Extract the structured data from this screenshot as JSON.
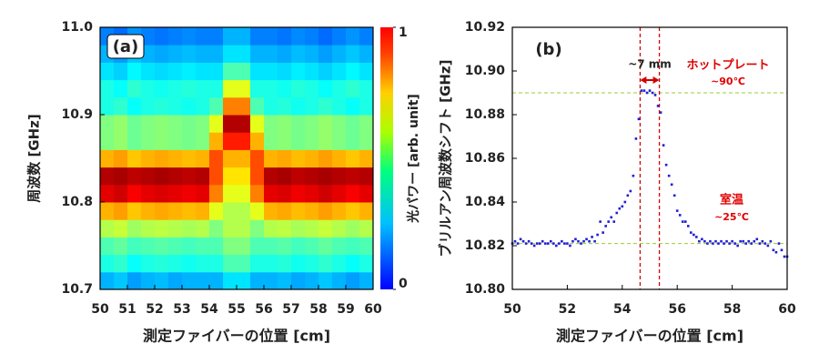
{
  "chart_data": [
    {
      "type": "heatmap",
      "panel_label": "(a)",
      "x_label": "測定ファイバーの位置 [cm]",
      "y_label": "周波数 [GHz]",
      "colorbar_label": "光パワー [arb. unit]",
      "xlim": [
        50,
        60
      ],
      "xticks": [
        50,
        51,
        52,
        53,
        54,
        55,
        56,
        57,
        58,
        59,
        60
      ],
      "ylim": [
        10.7,
        11.0
      ],
      "yticks": [
        10.7,
        10.8,
        10.9,
        {
          "value": 11.0,
          "label": "11.0"
        }
      ],
      "zlim": [
        0,
        1
      ],
      "zticks": [
        0,
        1
      ],
      "colormap": "jet",
      "x": [
        50.25,
        50.75,
        51.25,
        51.75,
        52.25,
        52.75,
        53.25,
        53.75,
        54.25,
        54.75,
        55.25,
        55.75,
        56.25,
        56.75,
        57.25,
        57.75,
        58.25,
        58.75,
        59.25,
        59.75
      ],
      "y": [
        10.71,
        10.73,
        10.75,
        10.77,
        10.79,
        10.81,
        10.83,
        10.85,
        10.87,
        10.89,
        10.91,
        10.93,
        10.95,
        10.97,
        10.99
      ],
      "z": [
        [
          0.3,
          0.32,
          0.28,
          0.3,
          0.31,
          0.29,
          0.3,
          0.3,
          0.3,
          0.35,
          0.35,
          0.3,
          0.3,
          0.31,
          0.29,
          0.3,
          0.32,
          0.3,
          0.28,
          0.3
        ],
        [
          0.4,
          0.42,
          0.38,
          0.4,
          0.41,
          0.4,
          0.39,
          0.4,
          0.4,
          0.45,
          0.45,
          0.4,
          0.4,
          0.41,
          0.39,
          0.4,
          0.42,
          0.4,
          0.38,
          0.4
        ],
        [
          0.45,
          0.47,
          0.44,
          0.45,
          0.46,
          0.45,
          0.44,
          0.45,
          0.45,
          0.5,
          0.5,
          0.45,
          0.45,
          0.46,
          0.44,
          0.45,
          0.47,
          0.45,
          0.44,
          0.45
        ],
        [
          0.55,
          0.57,
          0.53,
          0.55,
          0.56,
          0.55,
          0.54,
          0.55,
          0.5,
          0.55,
          0.55,
          0.5,
          0.55,
          0.56,
          0.54,
          0.55,
          0.57,
          0.55,
          0.53,
          0.55
        ],
        [
          0.7,
          0.72,
          0.68,
          0.7,
          0.71,
          0.7,
          0.69,
          0.7,
          0.6,
          0.55,
          0.55,
          0.6,
          0.7,
          0.71,
          0.69,
          0.7,
          0.72,
          0.7,
          0.68,
          0.7
        ],
        [
          0.9,
          0.92,
          0.88,
          0.9,
          0.91,
          0.9,
          0.89,
          0.9,
          0.75,
          0.6,
          0.6,
          0.75,
          0.9,
          0.91,
          0.89,
          0.9,
          0.92,
          0.9,
          0.88,
          0.9
        ],
        [
          0.95,
          0.96,
          0.94,
          0.95,
          0.96,
          0.95,
          0.94,
          0.95,
          0.8,
          0.65,
          0.65,
          0.8,
          0.95,
          0.96,
          0.94,
          0.95,
          0.96,
          0.95,
          0.94,
          0.95
        ],
        [
          0.7,
          0.72,
          0.68,
          0.7,
          0.71,
          0.7,
          0.69,
          0.7,
          0.8,
          0.7,
          0.7,
          0.8,
          0.7,
          0.71,
          0.69,
          0.7,
          0.72,
          0.7,
          0.68,
          0.7
        ],
        [
          0.5,
          0.52,
          0.48,
          0.5,
          0.51,
          0.5,
          0.49,
          0.5,
          0.7,
          0.85,
          0.85,
          0.7,
          0.5,
          0.51,
          0.49,
          0.5,
          0.52,
          0.5,
          0.48,
          0.5
        ],
        [
          0.5,
          0.52,
          0.48,
          0.5,
          0.51,
          0.5,
          0.49,
          0.5,
          0.6,
          0.95,
          0.95,
          0.6,
          0.5,
          0.51,
          0.49,
          0.5,
          0.52,
          0.5,
          0.48,
          0.5
        ],
        [
          0.4,
          0.42,
          0.38,
          0.4,
          0.41,
          0.4,
          0.39,
          0.4,
          0.45,
          0.75,
          0.75,
          0.45,
          0.4,
          0.41,
          0.39,
          0.4,
          0.42,
          0.4,
          0.38,
          0.4
        ],
        [
          0.4,
          0.38,
          0.42,
          0.4,
          0.39,
          0.4,
          0.41,
          0.4,
          0.4,
          0.6,
          0.6,
          0.4,
          0.4,
          0.39,
          0.41,
          0.4,
          0.38,
          0.4,
          0.42,
          0.4
        ],
        [
          0.35,
          0.33,
          0.37,
          0.35,
          0.34,
          0.35,
          0.36,
          0.35,
          0.35,
          0.45,
          0.45,
          0.35,
          0.35,
          0.34,
          0.36,
          0.35,
          0.33,
          0.35,
          0.37,
          0.35
        ],
        [
          0.3,
          0.28,
          0.32,
          0.3,
          0.29,
          0.3,
          0.31,
          0.3,
          0.3,
          0.35,
          0.35,
          0.3,
          0.3,
          0.29,
          0.31,
          0.3,
          0.28,
          0.3,
          0.32,
          0.3
        ],
        [
          0.25,
          0.23,
          0.27,
          0.25,
          0.24,
          0.25,
          0.26,
          0.25,
          0.25,
          0.3,
          0.3,
          0.25,
          0.25,
          0.24,
          0.26,
          0.25,
          0.23,
          0.25,
          0.27,
          0.25
        ]
      ]
    },
    {
      "type": "scatter",
      "panel_label": "(b)",
      "x_label": "測定ファイバーの位置 [cm]",
      "y_label": "ブリルアン周波数シフト [GHz]",
      "xlim": [
        50,
        60
      ],
      "xticks": [
        50,
        52,
        54,
        56,
        58,
        60
      ],
      "ylim": [
        10.8,
        10.92
      ],
      "yticks": [
        {
          "value": 10.8,
          "label": "10.80"
        },
        10.82,
        10.84,
        10.86,
        10.88,
        {
          "value": 10.9,
          "label": "10.90"
        },
        10.92
      ],
      "color": "#1f1fd6",
      "hlines": [
        {
          "value": 10.89,
          "color": "#9acd32"
        },
        {
          "value": 10.821,
          "color": "#9acd32"
        }
      ],
      "vlines": [
        {
          "value": 54.65,
          "color": "#d40000"
        },
        {
          "value": 55.35,
          "color": "#d40000"
        }
      ],
      "span_label": "~7 mm",
      "annotations": [
        {
          "text": "ホットプレート",
          "color": "#e00000"
        },
        {
          "text": "~90℃",
          "color": "#e00000"
        },
        {
          "text": "室温",
          "color": "#e00000"
        },
        {
          "text": "~25℃",
          "color": "#e00000"
        }
      ],
      "x": [
        50.0,
        50.1,
        50.2,
        50.3,
        50.4,
        50.5,
        50.6,
        50.7,
        50.8,
        50.9,
        51.0,
        51.1,
        51.2,
        51.3,
        51.4,
        51.5,
        51.6,
        51.7,
        51.8,
        51.9,
        52.0,
        52.1,
        52.2,
        52.3,
        52.4,
        52.5,
        52.6,
        52.7,
        52.8,
        52.9,
        53.0,
        53.1,
        53.2,
        53.3,
        53.4,
        53.5,
        53.6,
        53.7,
        53.8,
        53.9,
        54.0,
        54.1,
        54.2,
        54.3,
        54.4,
        54.5,
        54.6,
        54.7,
        54.8,
        54.9,
        55.0,
        55.1,
        55.2,
        55.3,
        55.4,
        55.5,
        55.6,
        55.7,
        55.8,
        55.9,
        56.0,
        56.1,
        56.2,
        56.3,
        56.4,
        56.5,
        56.6,
        56.7,
        56.8,
        56.9,
        57.0,
        57.1,
        57.2,
        57.3,
        57.4,
        57.5,
        57.6,
        57.7,
        57.8,
        57.9,
        58.0,
        58.1,
        58.2,
        58.3,
        58.4,
        58.5,
        58.6,
        58.7,
        58.8,
        58.9,
        59.0,
        59.1,
        59.2,
        59.3,
        59.4,
        59.5,
        59.6,
        59.7,
        59.8,
        59.9,
        60.0
      ],
      "values": [
        10.821,
        10.822,
        10.821,
        10.823,
        10.822,
        10.821,
        10.822,
        10.821,
        10.82,
        10.821,
        10.821,
        10.822,
        10.821,
        10.821,
        10.822,
        10.821,
        10.82,
        10.821,
        10.822,
        10.821,
        10.821,
        10.82,
        10.822,
        10.823,
        10.822,
        10.821,
        10.822,
        10.823,
        10.822,
        10.824,
        10.822,
        10.825,
        10.831,
        10.826,
        10.829,
        10.831,
        10.833,
        10.831,
        10.835,
        10.837,
        10.838,
        10.84,
        10.843,
        10.845,
        10.852,
        10.869,
        10.878,
        10.891,
        10.891,
        10.89,
        10.891,
        10.89,
        10.889,
        10.884,
        10.881,
        10.866,
        10.857,
        10.852,
        10.848,
        10.843,
        10.836,
        10.834,
        10.831,
        10.831,
        10.829,
        10.826,
        10.825,
        10.824,
        10.822,
        10.823,
        10.822,
        10.821,
        10.822,
        10.821,
        10.822,
        10.821,
        10.822,
        10.821,
        10.822,
        10.821,
        10.822,
        10.821,
        10.82,
        10.822,
        10.822,
        10.821,
        10.822,
        10.821,
        10.822,
        10.823,
        10.821,
        10.822,
        10.821,
        10.82,
        10.822,
        10.818,
        10.817,
        10.821,
        10.818,
        10.815,
        10.815
      ]
    }
  ]
}
